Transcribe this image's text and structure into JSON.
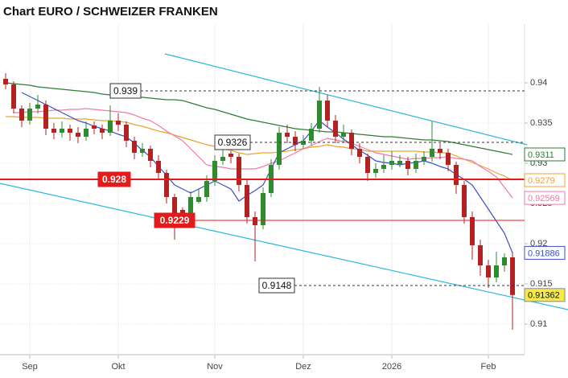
{
  "chart_data": {
    "type": "candlestick",
    "title": "Chart EURO / SCHWEIZER FRANKEN",
    "categories": [
      null,
      null,
      null,
      "Sep",
      null,
      null,
      null,
      null,
      null,
      null,
      null,
      null,
      null,
      null,
      "Okt",
      null,
      null,
      null,
      null,
      null,
      null,
      null,
      null,
      null,
      null,
      null,
      "Nov",
      null,
      null,
      null,
      null,
      null,
      null,
      null,
      null,
      null,
      null,
      "Dez",
      null,
      null,
      null,
      null,
      null,
      null,
      null,
      null,
      null,
      null,
      "2026",
      null,
      null,
      null,
      null,
      null,
      null,
      null,
      null,
      null,
      null,
      null,
      "Feb",
      null,
      null,
      null
    ],
    "candles": [
      [
        0.9405,
        0.9412,
        0.9392,
        0.9398
      ],
      [
        0.9398,
        0.9402,
        0.9362,
        0.9368
      ],
      [
        0.9368,
        0.9372,
        0.9345,
        0.9353
      ],
      [
        0.9353,
        0.9375,
        0.9348,
        0.9368
      ],
      [
        0.9368,
        0.9385,
        0.9362,
        0.9373
      ],
      [
        0.9373,
        0.9378,
        0.9335,
        0.9343
      ],
      [
        0.9343,
        0.935,
        0.933,
        0.9338
      ],
      [
        0.9338,
        0.9352,
        0.9332,
        0.9343
      ],
      [
        0.9343,
        0.9348,
        0.9328,
        0.9338
      ],
      [
        0.9338,
        0.9345,
        0.9325,
        0.9333
      ],
      [
        0.9333,
        0.9352,
        0.9328,
        0.9343
      ],
      [
        0.9347,
        0.9352,
        0.9336,
        0.9343
      ],
      [
        0.9343,
        0.9348,
        0.933,
        0.9338
      ],
      [
        0.9338,
        0.9372,
        0.9334,
        0.9353
      ],
      [
        0.9353,
        0.9362,
        0.934,
        0.9348
      ],
      [
        0.9348,
        0.9352,
        0.932,
        0.9328
      ],
      [
        0.9328,
        0.9333,
        0.9305,
        0.9313
      ],
      [
        0.9313,
        0.9325,
        0.9308,
        0.9318
      ],
      [
        0.9318,
        0.9322,
        0.9295,
        0.9303
      ],
      [
        0.9303,
        0.931,
        0.928,
        0.9288
      ],
      [
        0.9288,
        0.9292,
        0.925,
        0.9258
      ],
      [
        0.9258,
        0.9262,
        0.9205,
        0.9238
      ],
      [
        0.9242,
        0.9245,
        0.9225,
        0.9238
      ],
      [
        0.9238,
        0.9265,
        0.9232,
        0.9258
      ],
      [
        0.9252,
        0.9268,
        0.925,
        0.9258
      ],
      [
        0.9258,
        0.9285,
        0.9252,
        0.9278
      ],
      [
        0.9278,
        0.931,
        0.9272,
        0.9303
      ],
      [
        0.9303,
        0.9318,
        0.9298,
        0.9308
      ],
      [
        0.9312,
        0.9315,
        0.93,
        0.9308
      ],
      [
        0.9308,
        0.9312,
        0.9265,
        0.9273
      ],
      [
        0.9273,
        0.928,
        0.9225,
        0.9233
      ],
      [
        0.9233,
        0.924,
        0.9178,
        0.9223
      ],
      [
        0.9223,
        0.927,
        0.9218,
        0.9263
      ],
      [
        0.9263,
        0.9305,
        0.9258,
        0.9298
      ],
      [
        0.9298,
        0.9345,
        0.9292,
        0.9338
      ],
      [
        0.9338,
        0.9348,
        0.9325,
        0.9333
      ],
      [
        0.9333,
        0.934,
        0.9315,
        0.9323
      ],
      [
        0.9323,
        0.9335,
        0.9318,
        0.9328
      ],
      [
        0.9328,
        0.935,
        0.9322,
        0.9343
      ],
      [
        0.9343,
        0.9395,
        0.9338,
        0.9378
      ],
      [
        0.9378,
        0.9385,
        0.9345,
        0.9353
      ],
      [
        0.9353,
        0.936,
        0.9325,
        0.9333
      ],
      [
        0.9333,
        0.9348,
        0.9328,
        0.9338
      ],
      [
        0.9338,
        0.9342,
        0.931,
        0.9318
      ],
      [
        0.9318,
        0.9325,
        0.93,
        0.9308
      ],
      [
        0.9308,
        0.9312,
        0.9278,
        0.9288
      ],
      [
        0.9288,
        0.93,
        0.9282,
        0.9293
      ],
      [
        0.9293,
        0.931,
        0.9288,
        0.9298
      ],
      [
        0.9298,
        0.9315,
        0.9292,
        0.9303
      ],
      [
        0.9299,
        0.931,
        0.9295,
        0.9303
      ],
      [
        0.9303,
        0.9308,
        0.9285,
        0.9293
      ],
      [
        0.9293,
        0.9312,
        0.9288,
        0.9303
      ],
      [
        0.9303,
        0.9315,
        0.9298,
        0.9308
      ],
      [
        0.9308,
        0.9352,
        0.9302,
        0.9318
      ],
      [
        0.9318,
        0.9325,
        0.9305,
        0.9313
      ],
      [
        0.9313,
        0.9318,
        0.929,
        0.9298
      ],
      [
        0.9298,
        0.9302,
        0.9262,
        0.9273
      ],
      [
        0.9273,
        0.9278,
        0.9225,
        0.9233
      ],
      [
        0.9233,
        0.924,
        0.918,
        0.9198
      ],
      [
        0.9198,
        0.9205,
        0.916,
        0.9173
      ],
      [
        0.9173,
        0.918,
        0.9145,
        0.9158
      ],
      [
        0.9158,
        0.919,
        0.9152,
        0.9173
      ],
      [
        0.9173,
        0.9188,
        0.9165,
        0.9183
      ],
      [
        0.9183,
        0.919,
        0.9093,
        0.91362
      ]
    ],
    "up_color": "#2e8b2e",
    "down_color": "#b22222",
    "last_price_color": "#f7e94a",
    "ylim": [
      0.9066,
      0.9473
    ],
    "yticks": [
      0.94,
      0.935,
      0.93,
      0.925,
      0.92,
      0.915,
      0.91
    ],
    "grid": true,
    "overlays": [
      {
        "color": "#2e7d32",
        "values": [
          0.94,
          0.9399,
          0.9398,
          0.9397,
          0.9395,
          0.9394,
          0.9393,
          0.9392,
          0.9391,
          0.939,
          0.9389,
          0.9388,
          0.9386,
          0.9385,
          0.9384,
          0.9383,
          0.9382,
          0.9382,
          0.9381,
          0.938,
          0.9379,
          0.9379,
          0.9378,
          0.9375,
          0.9372,
          0.9369,
          0.9367,
          0.9364,
          0.9361,
          0.9358,
          0.9355,
          0.9353,
          0.9351,
          0.9349,
          0.9347,
          0.9345,
          0.9343,
          0.9342,
          0.9341,
          0.934,
          0.9339,
          0.9339,
          0.9338,
          0.9337,
          0.9336,
          0.9335,
          0.9334,
          0.9333,
          0.9333,
          0.9332,
          0.9331,
          0.933,
          0.9329,
          0.9329,
          0.9328,
          0.9327,
          0.9325,
          0.9323,
          0.9321,
          0.9319,
          0.9317,
          0.9315,
          0.9313,
          0.9311
        ]
      },
      {
        "color": "#f0a030",
        "values": [
          0.9358,
          0.9358,
          0.9357,
          0.9357,
          0.9357,
          0.9356,
          0.9356,
          0.9356,
          0.9355,
          0.9355,
          0.9355,
          0.9354,
          0.9353,
          0.9353,
          0.9352,
          0.9351,
          0.9348,
          0.9346,
          0.9343,
          0.934,
          0.9338,
          0.9335,
          0.9332,
          0.9329,
          0.9326,
          0.9323,
          0.9321,
          0.9318,
          0.9316,
          0.9313,
          0.9311,
          0.9312,
          0.9313,
          0.9313,
          0.9314,
          0.9315,
          0.9317,
          0.9318,
          0.932,
          0.9321,
          0.9323,
          0.9321,
          0.932,
          0.9318,
          0.9317,
          0.9315,
          0.9315,
          0.9315,
          0.9315,
          0.9315,
          0.9315,
          0.9315,
          0.9314,
          0.9314,
          0.9313,
          0.9313,
          0.9309,
          0.9305,
          0.9301,
          0.9297,
          0.9293,
          0.9288,
          0.9284,
          0.9279
        ]
      },
      {
        "color": "#f07aa8",
        "values": [
          null,
          0.9363,
          0.9363,
          0.9364,
          0.9364,
          0.9365,
          0.9366,
          0.9366,
          0.9367,
          0.9367,
          0.9368,
          0.9367,
          0.9366,
          0.9365,
          0.9364,
          0.9363,
          0.936,
          0.9356,
          0.9353,
          0.9347,
          0.934,
          0.9334,
          0.9328,
          0.9318,
          0.9308,
          0.9298,
          0.9296,
          0.9295,
          0.9293,
          0.9293,
          0.9293,
          0.9293,
          0.9296,
          0.93,
          0.9303,
          0.9308,
          0.9313,
          0.9318,
          0.9322,
          0.9327,
          0.9331,
          0.9329,
          0.9327,
          0.9325,
          0.9321,
          0.9317,
          0.9313,
          0.9311,
          0.9309,
          0.9307,
          0.9305,
          0.9306,
          0.9306,
          0.9307,
          0.9307,
          0.9308,
          0.9306,
          0.9305,
          0.9303,
          0.9296,
          0.929,
          0.9283,
          0.927,
          0.92569
        ]
      },
      {
        "color": "#3a4fc8",
        "values": [
          null,
          null,
          0.9388,
          0.9383,
          0.9378,
          0.9373,
          0.9368,
          0.9363,
          0.9358,
          0.9353,
          0.935,
          0.9346,
          0.9343,
          0.934,
          0.9336,
          0.9333,
          0.9325,
          0.9316,
          0.9308,
          0.9296,
          0.9285,
          0.9273,
          0.9268,
          0.9263,
          0.9268,
          0.9273,
          0.9278,
          0.9273,
          0.9268,
          0.9253,
          0.926,
          0.9266,
          0.9273,
          0.9293,
          0.9313,
          0.9318,
          0.9323,
          0.9328,
          0.934,
          0.9353,
          0.9345,
          0.9338,
          0.933,
          0.9323,
          0.9316,
          0.931,
          0.9303,
          0.9301,
          0.93,
          0.9298,
          0.93,
          0.9301,
          0.9303,
          0.93,
          0.9296,
          0.9293,
          0.9286,
          0.928,
          0.9273,
          0.9258,
          0.9243,
          0.9228,
          0.9213,
          0.91886
        ]
      }
    ],
    "levels": [
      {
        "value": 0.939,
        "style": "dashed"
      },
      {
        "value": 0.9326,
        "style": "dashed"
      },
      {
        "value": 0.928,
        "style": "red-strong"
      },
      {
        "value": 0.9229,
        "style": "red"
      },
      {
        "value": 0.9148,
        "style": "dashed"
      }
    ]
  }
}
